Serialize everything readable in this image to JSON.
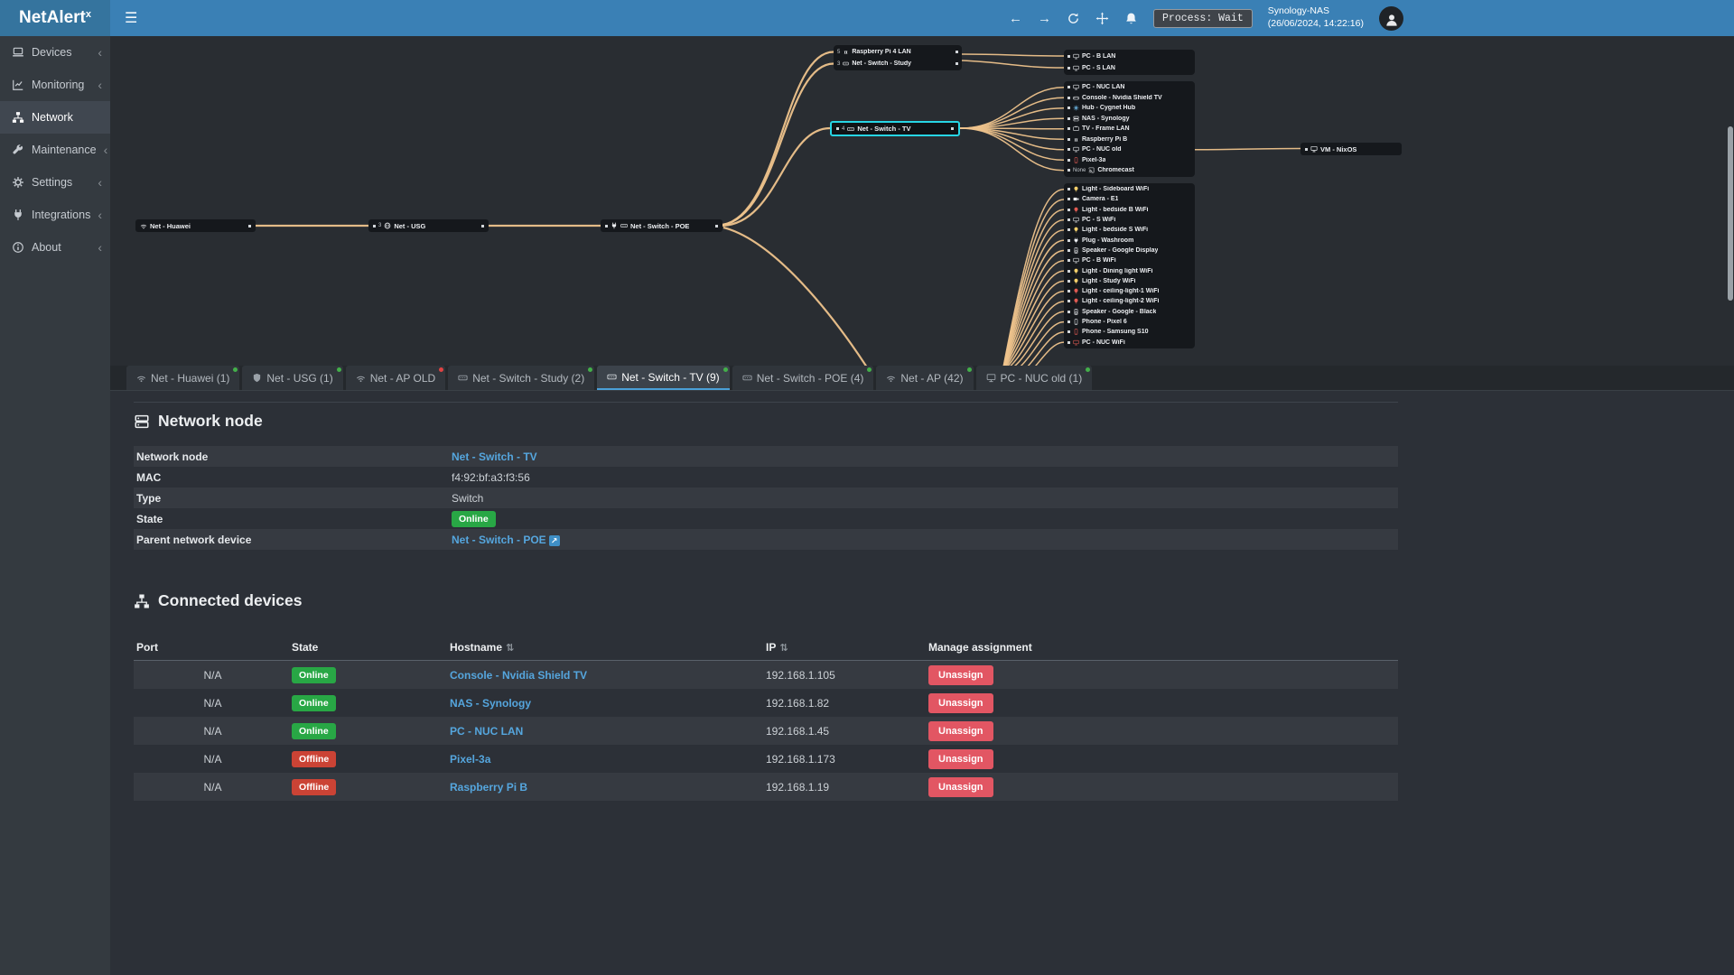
{
  "icons": {
    "hamburger": "☰",
    "back_arrow": "←",
    "forward_arrow": "→",
    "chevron_left": "‹",
    "sort": "⇅",
    "external": "↗"
  },
  "app": {
    "title_base": "NetAlert",
    "title_sup": "x"
  },
  "topbar": {
    "process_label": "Process: Wait",
    "server_name": "Synology-NAS",
    "server_time": "(26/06/2024, 14:22:16)"
  },
  "sidebar": {
    "items": [
      {
        "label": "Devices",
        "icon": "laptop",
        "chevron": true
      },
      {
        "label": "Monitoring",
        "icon": "chart",
        "chevron": true
      },
      {
        "label": "Network",
        "icon": "sitemap",
        "active": true,
        "chevron": false
      },
      {
        "label": "Maintenance",
        "icon": "wrench",
        "chevron": true
      },
      {
        "label": "Settings",
        "icon": "gear",
        "chevron": true
      },
      {
        "label": "Integrations",
        "icon": "plug",
        "chevron": true
      },
      {
        "label": "About",
        "icon": "info",
        "chevron": true
      }
    ]
  },
  "topology": {
    "nodes": {
      "huawei": {
        "label": "Net - Huawei",
        "prefix": ""
      },
      "usg": {
        "label": "Net - USG",
        "prefix": "3"
      },
      "poe": {
        "label": "Net - Switch - POE",
        "prefix": ""
      },
      "tv": {
        "label": "Net - Switch - TV",
        "prefix": "4"
      },
      "nixos": {
        "label": "VM - NixOS",
        "prefix": ""
      }
    },
    "study_group": [
      {
        "label": "Raspberry Pi 4 LAN",
        "icon": "pi",
        "prefix": "5"
      },
      {
        "label": "Net - Switch - Study",
        "icon": "switch",
        "prefix": "3"
      }
    ],
    "lan_top_group": [
      {
        "label": "PC - B LAN",
        "icon": "monitor"
      },
      {
        "label": "PC - S LAN",
        "icon": "monitor"
      }
    ],
    "tv_group": [
      {
        "label": "PC - NUC LAN",
        "icon": "monitor"
      },
      {
        "label": "Console - Nvidia Shield TV",
        "icon": "gamepad"
      },
      {
        "label": "Hub - Cygnet Hub",
        "icon": "hub",
        "color": "#6fb9e8"
      },
      {
        "label": "NAS - Synology",
        "icon": "server"
      },
      {
        "label": "TV - Frame LAN",
        "icon": "tv"
      },
      {
        "label": "Raspberry Pi B",
        "icon": "pi"
      },
      {
        "label": "PC - NUC old",
        "icon": "monitor"
      },
      {
        "label": "Pixel-3a",
        "icon": "phone",
        "color": "#e05a52"
      },
      {
        "label": "Chromecast",
        "icon": "cast",
        "prefix": "None"
      }
    ],
    "wifi_group": [
      {
        "label": "Light - Sideboard WiFi",
        "icon": "light",
        "color": "#f4cf6a"
      },
      {
        "label": "Camera - E1",
        "icon": "camera"
      },
      {
        "label": "Light - bedside B WiFi",
        "icon": "light",
        "color": "#e05a52"
      },
      {
        "label": "PC - S WiFi",
        "icon": "monitor"
      },
      {
        "label": "Light - bedside S WiFi",
        "icon": "light",
        "color": "#f4cf6a"
      },
      {
        "label": "Plug - Washroom",
        "icon": "plug"
      },
      {
        "label": "Speaker - Google Display",
        "icon": "speaker"
      },
      {
        "label": "PC - B WiFi",
        "icon": "monitor"
      },
      {
        "label": "Light - Dining light WiFi",
        "icon": "light",
        "color": "#f4cf6a"
      },
      {
        "label": "Light - Study WiFi",
        "icon": "light",
        "color": "#f4cf6a"
      },
      {
        "label": "Light - ceiling-light-1 WiFi",
        "icon": "light",
        "color": "#e05a52"
      },
      {
        "label": "Light - ceiling-light-2 WiFi",
        "icon": "light",
        "color": "#e05a52"
      },
      {
        "label": "Speaker - Google - Black",
        "icon": "speaker"
      },
      {
        "label": "Phone - Pixel 6",
        "icon": "phone"
      },
      {
        "label": "Phone - Samsung S10",
        "icon": "phone",
        "color": "#e05a52"
      },
      {
        "label": "PC - NUC WiFi",
        "icon": "monitor",
        "color": "#e05a52"
      }
    ]
  },
  "tabs": [
    {
      "label": "Net - Huawei (1)",
      "icon": "wifi",
      "dot": "#43b04a"
    },
    {
      "label": "Net - USG (1)",
      "icon": "shield",
      "dot": "#43b04a"
    },
    {
      "label": "Net - AP OLD",
      "icon": "wifi",
      "dot": "#e04343"
    },
    {
      "label": "Net - Switch - Study (2)",
      "icon": "switch",
      "dot": "#43b04a"
    },
    {
      "label": "Net - Switch - TV (9)",
      "icon": "switch",
      "dot": "#43b04a",
      "active": true
    },
    {
      "label": "Net - Switch - POE (4)",
      "icon": "switch",
      "dot": "#43b04a"
    },
    {
      "label": "Net - AP (42)",
      "icon": "wifi",
      "dot": "#43b04a"
    },
    {
      "label": "PC - NUC old (1)",
      "icon": "monitor",
      "dot": "#43b04a"
    }
  ],
  "network_node": {
    "title": "Network node",
    "rows": [
      {
        "label": "Network node",
        "value": "Net - Switch - TV",
        "type": "link"
      },
      {
        "label": "MAC",
        "value": "f4:92:bf:a3:f3:56",
        "type": "text"
      },
      {
        "label": "Type",
        "value": "Switch",
        "type": "text"
      },
      {
        "label": "State",
        "value": "Online",
        "type": "badge"
      },
      {
        "label": "Parent network device",
        "value": "Net - Switch - POE",
        "type": "link-ext"
      }
    ]
  },
  "connected_devices": {
    "title": "Connected devices",
    "columns": [
      "Port",
      "State",
      "Hostname",
      "IP",
      "Manage assignment"
    ],
    "unassign_label": "Unassign",
    "rows": [
      {
        "port": "N/A",
        "state": "Online",
        "hostname": "Console - Nvidia Shield TV",
        "ip": "192.168.1.105"
      },
      {
        "port": "N/A",
        "state": "Online",
        "hostname": "NAS - Synology",
        "ip": "192.168.1.82"
      },
      {
        "port": "N/A",
        "state": "Online",
        "hostname": "PC - NUC LAN",
        "ip": "192.168.1.45"
      },
      {
        "port": "N/A",
        "state": "Offline",
        "hostname": "Pixel-3a",
        "ip": "192.168.1.173"
      },
      {
        "port": "N/A",
        "state": "Offline",
        "hostname": "Raspberry Pi B",
        "ip": "192.168.1.19"
      }
    ]
  },
  "colors": {
    "topbar": "#3a80b5",
    "accent": "#3c8dbc",
    "edge": "#eec38c",
    "online": "#28a745",
    "offline": "#cb4335",
    "unassign": "#e25663",
    "link": "#55a6de",
    "selected_node": "#27d5e4"
  }
}
